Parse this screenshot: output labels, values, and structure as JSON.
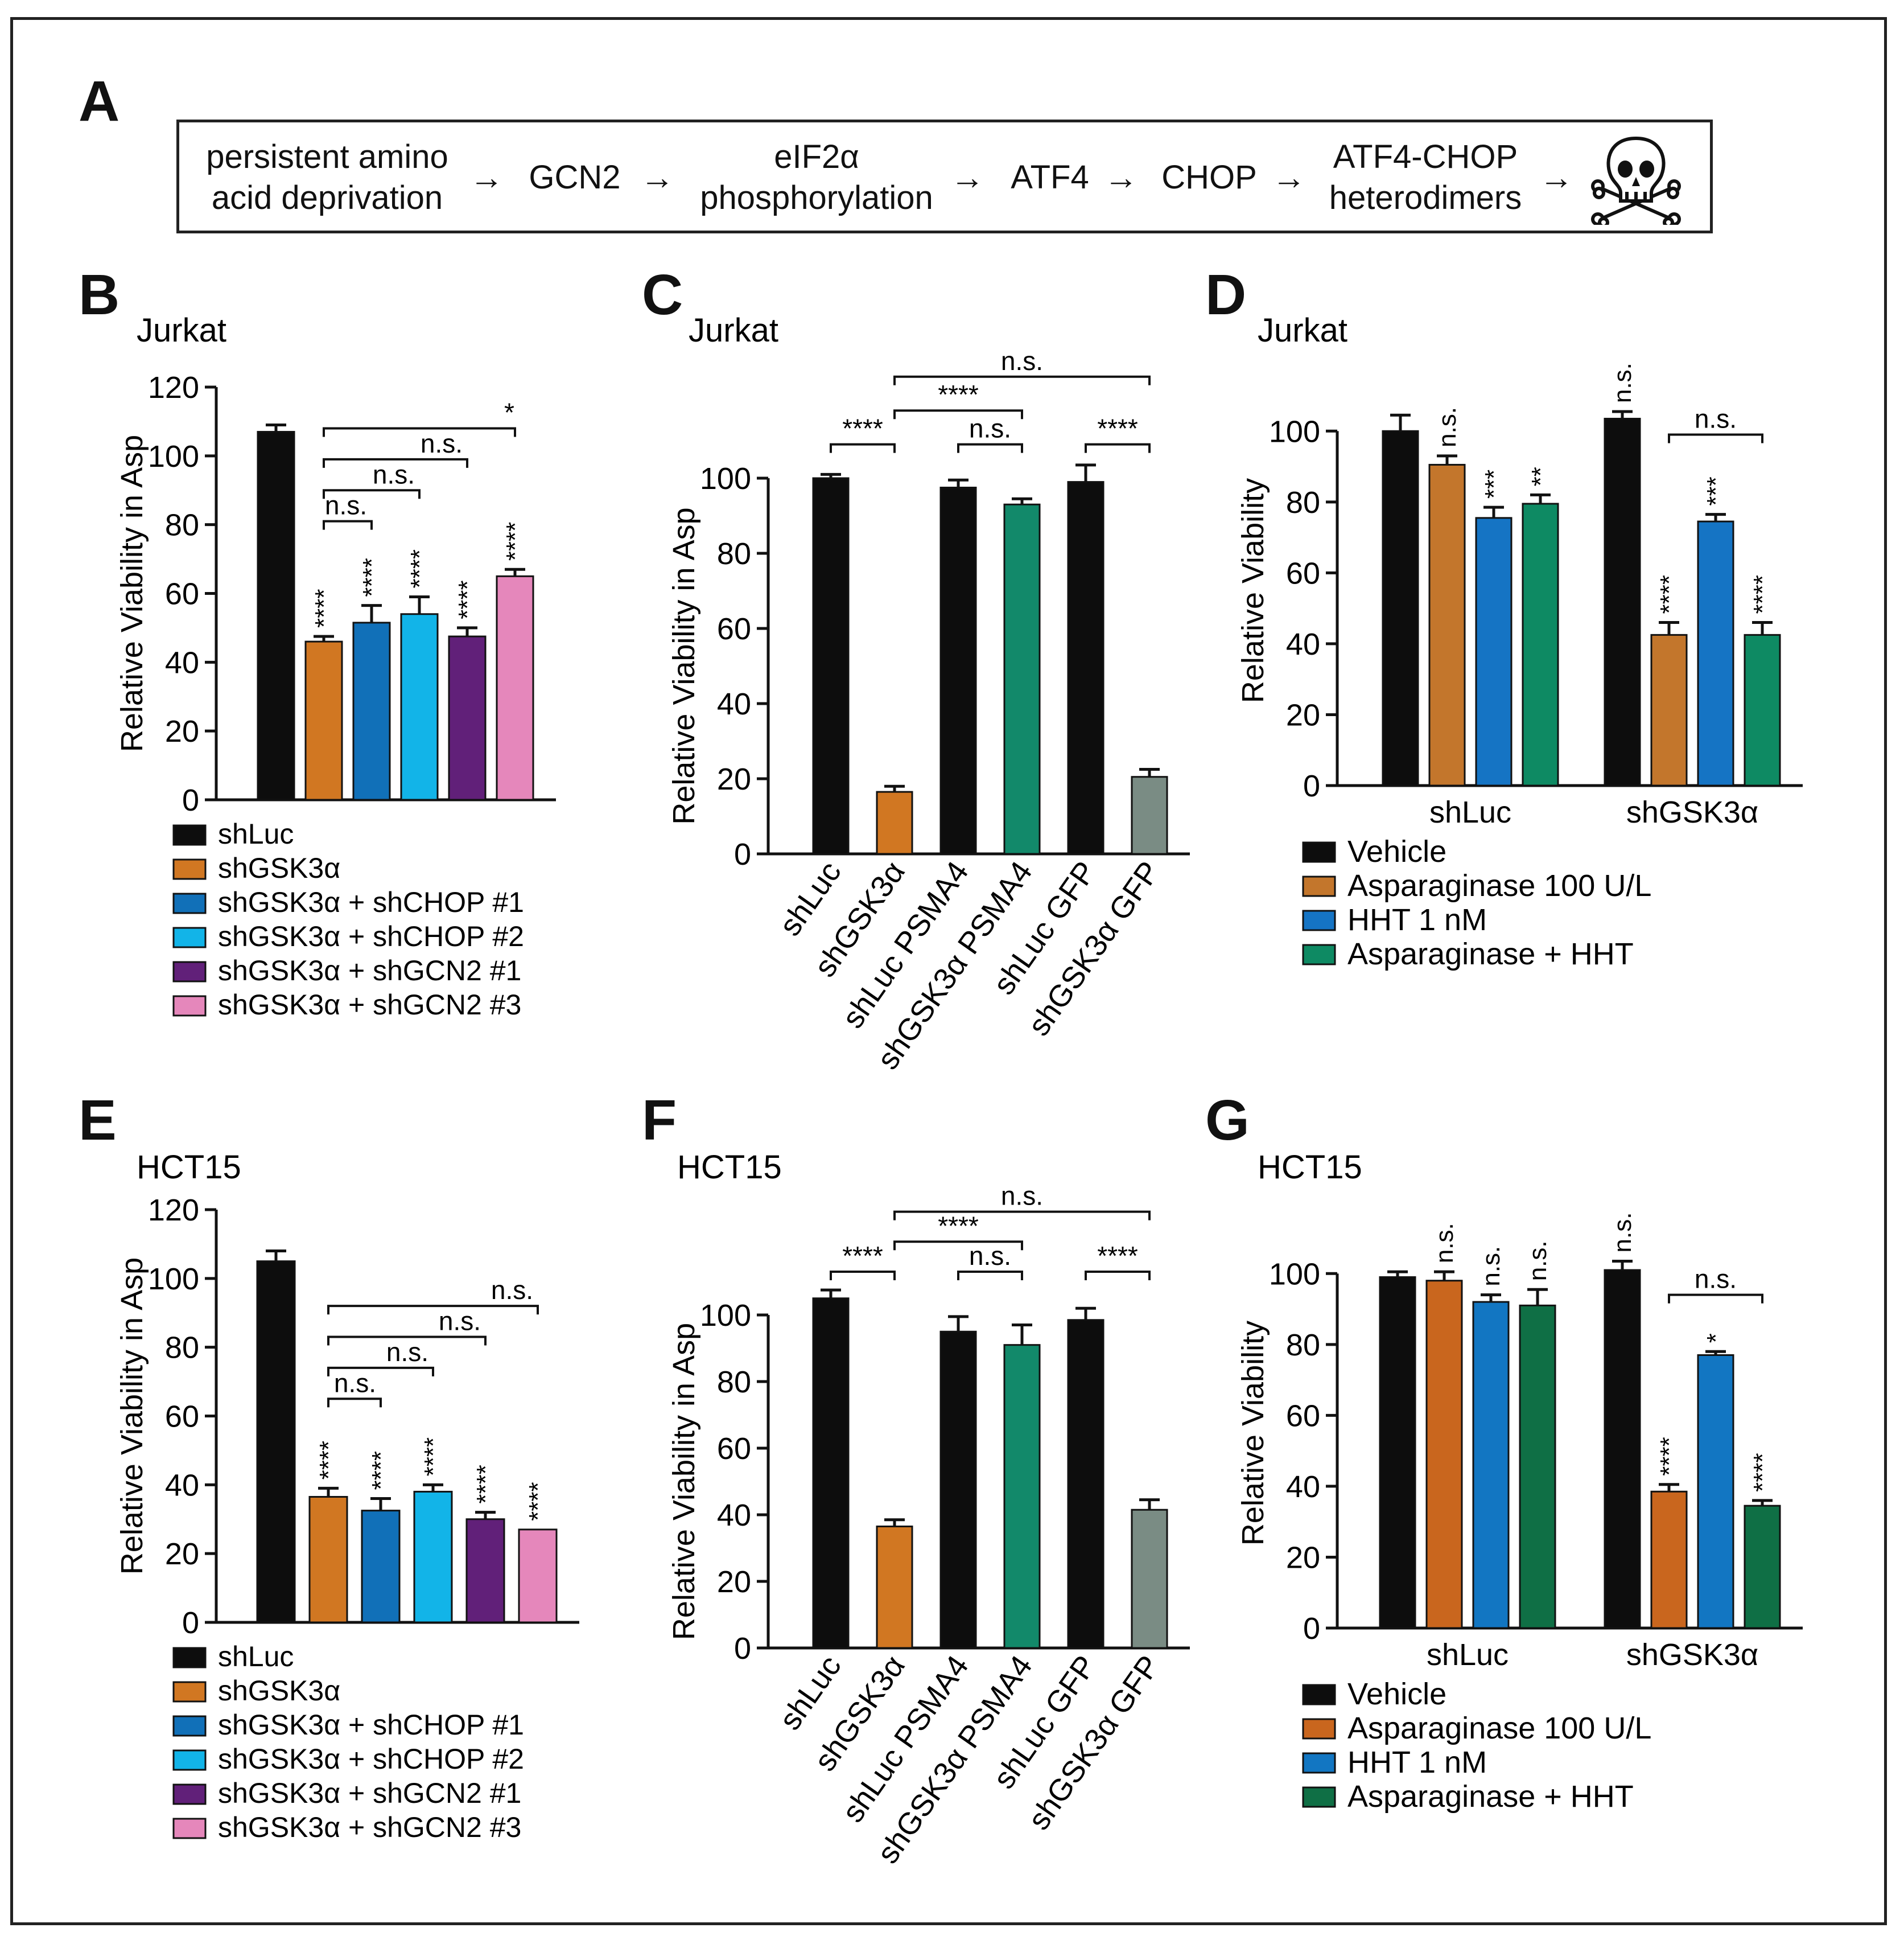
{
  "panel_letters": {
    "A": "A",
    "B": "B",
    "C": "C",
    "D": "D",
    "E": "E",
    "F": "F",
    "G": "G"
  },
  "pathway": {
    "steps": [
      {
        "line1": "persistent amino",
        "line2": "acid deprivation"
      },
      {
        "line1": "GCN2",
        "line2": ""
      },
      {
        "line1": "eIF2α",
        "line2": "phosphorylation"
      },
      {
        "line1": "ATF4",
        "line2": ""
      },
      {
        "line1": "CHOP",
        "line2": ""
      },
      {
        "line1": "ATF4-CHOP",
        "line2": "heterodimers"
      }
    ],
    "arrow": "→",
    "end_icon": "skull-and-crossbones-icon"
  },
  "colors": {
    "black": "#0d0d0d",
    "orange_b": "#d17722",
    "blue": "#1170b8",
    "cyan": "#12b4e8",
    "purple": "#612079",
    "pink": "#e587bb",
    "green": "#12896a",
    "gray": "#7a8c84",
    "orange_d": "#c3762c",
    "blue_d": "#1574c4",
    "green_d": "#0e8a63",
    "orange_g": "#c9661e",
    "blue_g": "#1276c2",
    "green_g": "#0f6f45"
  },
  "chart_data": [
    {
      "id": "B",
      "type": "bar",
      "title": "Jurkat",
      "xlabel": "",
      "ylabel": "Relative Viability in Asp",
      "ylim": [
        0,
        120
      ],
      "yticks": [
        0,
        20,
        40,
        60,
        80,
        100,
        120
      ],
      "series": [
        {
          "name": "shLuc",
          "value": 107,
          "err": 2,
          "color": "#0d0d0d",
          "star": ""
        },
        {
          "name": "shGSK3α",
          "value": 46,
          "err": 1.5,
          "color": "#d17722",
          "star": "****"
        },
        {
          "name": "shGSK3α + shCHOP #1",
          "value": 51.5,
          "err": 5,
          "color": "#1170b8",
          "star": "****"
        },
        {
          "name": "shGSK3α + shCHOP #2",
          "value": 54,
          "err": 5,
          "color": "#12b4e8",
          "star": "****"
        },
        {
          "name": "shGSK3α + shGCN2 #1",
          "value": 47.5,
          "err": 2.5,
          "color": "#612079",
          "star": "****"
        },
        {
          "name": "shGSK3α + shGCN2 #3",
          "value": 65,
          "err": 2,
          "color": "#e587bb",
          "star": "****"
        }
      ],
      "brackets": [
        {
          "from": 1,
          "to": 2,
          "y": 81,
          "label": "n.s."
        },
        {
          "from": 1,
          "to": 3,
          "y": 90,
          "label": "n.s."
        },
        {
          "from": 1,
          "to": 4,
          "y": 99,
          "label": "n.s."
        },
        {
          "from": 1,
          "to": 5,
          "y": 108,
          "label": "*"
        }
      ]
    },
    {
      "id": "C",
      "type": "bar",
      "title": "Jurkat",
      "xlabel": "",
      "ylabel": "Relative Viability in Asp",
      "ylim": [
        0,
        100
      ],
      "yticks": [
        0,
        20,
        40,
        60,
        80,
        100
      ],
      "categories": [
        "shLuc",
        "shGSK3α",
        "shLuc PSMA4",
        "shGSK3α PSMA4",
        "shLuc GFP",
        "shGSK3α GFP"
      ],
      "series": [
        {
          "name": "shLuc",
          "value": 100,
          "err": 1,
          "color": "#0d0d0d"
        },
        {
          "name": "shGSK3α",
          "value": 16.5,
          "err": 1.5,
          "color": "#d17722"
        },
        {
          "name": "shLuc PSMA4",
          "value": 97.5,
          "err": 2,
          "color": "#0d0d0d"
        },
        {
          "name": "shGSK3α PSMA4",
          "value": 93,
          "err": 1.5,
          "color": "#12896a"
        },
        {
          "name": "shLuc GFP",
          "value": 99,
          "err": 4.5,
          "color": "#0d0d0d"
        },
        {
          "name": "shGSK3α GFP",
          "value": 20.5,
          "err": 2,
          "color": "#7a8c84"
        }
      ],
      "brackets": [
        {
          "from": 0,
          "to": 1,
          "y": 109,
          "label": "****"
        },
        {
          "from": 2,
          "to": 3,
          "y": 109,
          "label": "n.s."
        },
        {
          "from": 4,
          "to": 5,
          "y": 109,
          "label": "****"
        },
        {
          "from": 1,
          "to": 3,
          "y": 118,
          "label": "****"
        },
        {
          "from": 1,
          "to": 5,
          "y": 127,
          "label": "n.s."
        }
      ]
    },
    {
      "id": "D",
      "type": "bar",
      "title": "Jurkat",
      "xlabel": "",
      "ylabel": "Relative Viability",
      "ylim": [
        0,
        110
      ],
      "yticks": [
        0,
        20,
        40,
        60,
        80,
        100
      ],
      "categories": [
        "shLuc",
        "shGSK3α"
      ],
      "groups": [
        {
          "name": "shLuc",
          "bars": [
            {
              "value": 100,
              "err": 4.5,
              "color": "#0d0d0d",
              "star": ""
            },
            {
              "value": 90.5,
              "err": 2.5,
              "color": "#c3762c",
              "star": "n.s."
            },
            {
              "value": 75.5,
              "err": 3,
              "color": "#1574c4",
              "star": "***"
            },
            {
              "value": 79.5,
              "err": 2.5,
              "color": "#0e8a63",
              "star": "**"
            }
          ]
        },
        {
          "name": "shGSK3α",
          "bars": [
            {
              "value": 103.5,
              "err": 2,
              "color": "#0d0d0d",
              "star": "n.s."
            },
            {
              "value": 42.5,
              "err": 3.5,
              "color": "#c3762c",
              "star": "****"
            },
            {
              "value": 74.5,
              "err": 2,
              "color": "#1574c4",
              "star": "***"
            },
            {
              "value": 42.5,
              "err": 3.5,
              "color": "#0e8a63",
              "star": "****"
            }
          ]
        }
      ],
      "brackets": [
        {
          "group": 1,
          "from": 1,
          "to": 3,
          "y": 99,
          "label": "n.s."
        }
      ],
      "legend": [
        {
          "label": "Vehicle",
          "color": "#0d0d0d"
        },
        {
          "label": "Asparaginase 100 U/L",
          "color": "#c3762c"
        },
        {
          "label": "HHT 1 nM",
          "color": "#1574c4"
        },
        {
          "label": "Asparaginase + HHT",
          "color": "#0e8a63"
        }
      ]
    },
    {
      "id": "E",
      "type": "bar",
      "title": "HCT15",
      "xlabel": "",
      "ylabel": "Relative Viability in Asp",
      "ylim": [
        0,
        120
      ],
      "yticks": [
        0,
        20,
        40,
        60,
        80,
        100,
        120
      ],
      "series": [
        {
          "name": "shLuc",
          "value": 105,
          "err": 3,
          "color": "#0d0d0d",
          "star": ""
        },
        {
          "name": "shGSK3α",
          "value": 36.5,
          "err": 2.5,
          "color": "#d17722",
          "star": "****"
        },
        {
          "name": "shGSK3α + shCHOP #1",
          "value": 32.5,
          "err": 3.5,
          "color": "#1170b8",
          "star": "****"
        },
        {
          "name": "shGSK3α + shCHOP #2",
          "value": 38,
          "err": 2,
          "color": "#12b4e8",
          "star": "****"
        },
        {
          "name": "shGSK3α + shGCN2 #1",
          "value": 30,
          "err": 2,
          "color": "#612079",
          "star": "****"
        },
        {
          "name": "shGSK3α + shGCN2 #3",
          "value": 27,
          "err": 0,
          "color": "#e587bb",
          "star": "****"
        }
      ],
      "brackets": [
        {
          "from": 1,
          "to": 2,
          "y": 65,
          "label": "n.s."
        },
        {
          "from": 1,
          "to": 3,
          "y": 74,
          "label": "n.s."
        },
        {
          "from": 1,
          "to": 4,
          "y": 83,
          "label": "n.s."
        },
        {
          "from": 1,
          "to": 5,
          "y": 92,
          "label": "n.s."
        }
      ]
    },
    {
      "id": "F",
      "type": "bar",
      "title": "HCT15",
      "xlabel": "",
      "ylabel": "Relative Viability in Asp",
      "ylim": [
        0,
        100
      ],
      "yticks": [
        0,
        20,
        40,
        60,
        80,
        100
      ],
      "categories": [
        "shLuc",
        "shGSK3α",
        "shLuc PSMA4",
        "shGSK3α PSMA4",
        "shLuc GFP",
        "shGSK3α GFP"
      ],
      "series": [
        {
          "name": "shLuc",
          "value": 105,
          "err": 2.5,
          "color": "#0d0d0d"
        },
        {
          "name": "shGSK3α",
          "value": 36.5,
          "err": 2,
          "color": "#d17722"
        },
        {
          "name": "shLuc PSMA4",
          "value": 95,
          "err": 4.5,
          "color": "#0d0d0d"
        },
        {
          "name": "shGSK3α PSMA4",
          "value": 91,
          "err": 6,
          "color": "#12896a"
        },
        {
          "name": "shLuc GFP",
          "value": 98.5,
          "err": 3.5,
          "color": "#0d0d0d"
        },
        {
          "name": "shGSK3α GFP",
          "value": 41.5,
          "err": 3,
          "color": "#7a8c84"
        }
      ],
      "brackets": [
        {
          "from": 0,
          "to": 1,
          "y": 113,
          "label": "****"
        },
        {
          "from": 2,
          "to": 3,
          "y": 113,
          "label": "n.s."
        },
        {
          "from": 4,
          "to": 5,
          "y": 113,
          "label": "****"
        },
        {
          "from": 1,
          "to": 3,
          "y": 122,
          "label": "****"
        },
        {
          "from": 1,
          "to": 5,
          "y": 131,
          "label": "n.s."
        }
      ]
    },
    {
      "id": "G",
      "type": "bar",
      "title": "HCT15",
      "xlabel": "",
      "ylabel": "Relative Viability",
      "ylim": [
        0,
        110
      ],
      "yticks": [
        0,
        20,
        40,
        60,
        80,
        100
      ],
      "categories": [
        "shLuc",
        "shGSK3α"
      ],
      "groups": [
        {
          "name": "shLuc",
          "bars": [
            {
              "value": 99,
              "err": 1.5,
              "color": "#0d0d0d",
              "star": ""
            },
            {
              "value": 98,
              "err": 2.5,
              "color": "#c9661e",
              "star": "n.s."
            },
            {
              "value": 92,
              "err": 2,
              "color": "#1276c2",
              "star": "n.s."
            },
            {
              "value": 91,
              "err": 4.5,
              "color": "#0f6f45",
              "star": "n.s."
            }
          ]
        },
        {
          "name": "shGSK3α",
          "bars": [
            {
              "value": 101,
              "err": 2.5,
              "color": "#0d0d0d",
              "star": "n.s."
            },
            {
              "value": 38.5,
              "err": 2,
              "color": "#c9661e",
              "star": "****"
            },
            {
              "value": 77,
              "err": 1,
              "color": "#1276c2",
              "star": "*"
            },
            {
              "value": 34.5,
              "err": 1.5,
              "color": "#0f6f45",
              "star": "****"
            }
          ]
        }
      ],
      "brackets": [
        {
          "group": 1,
          "from": 1,
          "to": 3,
          "y": 94,
          "label": "n.s."
        }
      ],
      "legend": [
        {
          "label": "Vehicle",
          "color": "#0d0d0d"
        },
        {
          "label": "Asparaginase 100 U/L",
          "color": "#c9661e"
        },
        {
          "label": "HHT 1 nM",
          "color": "#1276c2"
        },
        {
          "label": "Asparaginase + HHT",
          "color": "#0f6f45"
        }
      ]
    }
  ]
}
